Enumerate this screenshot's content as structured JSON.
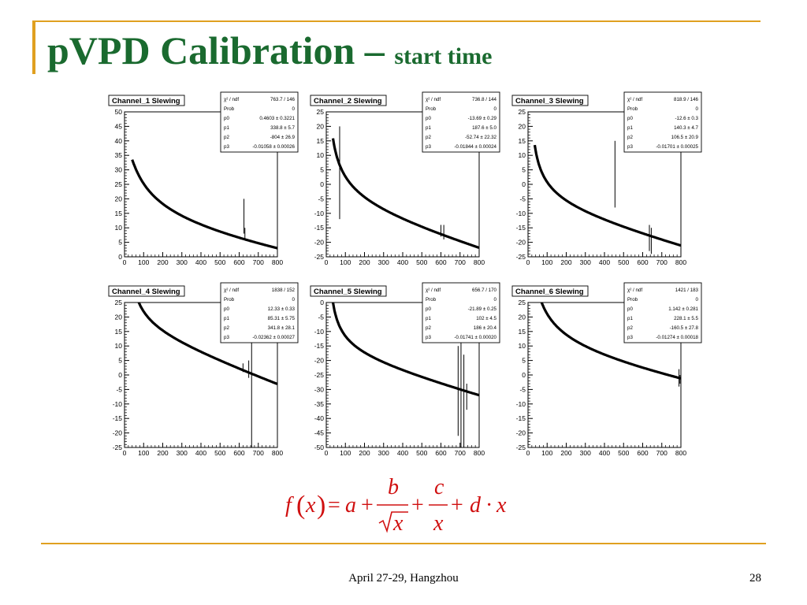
{
  "slide": {
    "title_main": "pVPD Calibration –",
    "title_sub": "start time",
    "footer": "April 27-29, Hangzhou",
    "page_number": "28",
    "formula_color": "#d01010",
    "title_color": "#1a6a2f",
    "accent_color": "#e0a020"
  },
  "formula": {
    "lhs": "f",
    "var": "x",
    "a": "a",
    "b": "b",
    "c": "c",
    "d": "d",
    "plus": "+",
    "equals": "=",
    "dot": "·"
  },
  "chart_data": [
    {
      "type": "line",
      "title": "Channel_1 Slewing",
      "xlim": [
        0,
        800
      ],
      "ylim": [
        0,
        50
      ],
      "xticks": [
        0,
        100,
        200,
        300,
        400,
        500,
        600,
        700,
        800
      ],
      "yticks": [
        0,
        5,
        10,
        15,
        20,
        25,
        30,
        35,
        40,
        45,
        50
      ],
      "stats": [
        [
          "χ² / ndf",
          "763.7 / 146"
        ],
        [
          "Prob",
          "0"
        ],
        [
          "p0",
          "0.4603 ± 0.3221"
        ],
        [
          "p1",
          "338.8 ± 5.7"
        ],
        [
          "p2",
          "-804 ± 26.9"
        ],
        [
          "p3",
          "-0.01058 ± 0.00026"
        ]
      ],
      "params": [
        0.4603,
        338.8,
        -804,
        -0.01058
      ],
      "x_range": [
        40,
        800
      ],
      "error_bars": [
        [
          625,
          8,
          20
        ],
        [
          630,
          6,
          10
        ]
      ],
      "grid": false
    },
    {
      "type": "line",
      "title": "Channel_2 Slewing",
      "xlim": [
        0,
        800
      ],
      "ylim": [
        -25,
        25
      ],
      "xticks": [
        0,
        100,
        200,
        300,
        400,
        500,
        600,
        700,
        800
      ],
      "yticks": [
        -25,
        -20,
        -15,
        -10,
        -5,
        0,
        5,
        10,
        15,
        20,
        25
      ],
      "stats": [
        [
          "χ² / ndf",
          "736.8 / 144"
        ],
        [
          "Prob",
          "0"
        ],
        [
          "p0",
          "-13.69 ± 0.29"
        ],
        [
          "p1",
          "187.6 ± 5.0"
        ],
        [
          "p2",
          "-52.74 ± 22.32"
        ],
        [
          "p3",
          "-0.01844 ± 0.00024"
        ]
      ],
      "params": [
        -13.69,
        187.6,
        -52.74,
        -0.01844
      ],
      "x_range": [
        35,
        800
      ],
      "error_bars": [
        [
          70,
          -12,
          20
        ],
        [
          615,
          -19,
          -14
        ],
        [
          600,
          -18,
          -14
        ]
      ],
      "grid": false
    },
    {
      "type": "line",
      "title": "Channel_3 Slewing",
      "xlim": [
        0,
        800
      ],
      "ylim": [
        -25,
        25
      ],
      "xticks": [
        0,
        100,
        200,
        300,
        400,
        500,
        600,
        700,
        800
      ],
      "yticks": [
        -25,
        -20,
        -15,
        -10,
        -5,
        0,
        5,
        10,
        15,
        20,
        25
      ],
      "stats": [
        [
          "χ² / ndf",
          "818.9 / 146"
        ],
        [
          "Prob",
          "0"
        ],
        [
          "p0",
          "-12.6 ± 0.3"
        ],
        [
          "p1",
          "140.3 ± 4.7"
        ],
        [
          "p2",
          "106.5 ± 20.9"
        ],
        [
          "p3",
          "-0.01701 ± 0.00025"
        ]
      ],
      "params": [
        -12.6,
        140.3,
        106.5,
        -0.01701
      ],
      "x_range": [
        35,
        800
      ],
      "error_bars": [
        [
          455,
          -8,
          15
        ],
        [
          635,
          -23,
          -14
        ],
        [
          645,
          -24,
          -15
        ]
      ],
      "grid": false
    },
    {
      "type": "line",
      "title": "Channel_4 Slewing",
      "xlim": [
        0,
        800
      ],
      "ylim": [
        -25,
        25
      ],
      "xticks": [
        0,
        100,
        200,
        300,
        400,
        500,
        600,
        700,
        800
      ],
      "yticks": [
        -25,
        -20,
        -15,
        -10,
        -5,
        0,
        5,
        10,
        15,
        20,
        25
      ],
      "stats": [
        [
          "χ² / ndf",
          "1838 / 152"
        ],
        [
          "Prob",
          "0"
        ],
        [
          "p0",
          "12.33 ± 0.33"
        ],
        [
          "p1",
          "85.31 ± 5.75"
        ],
        [
          "p2",
          "341.8 ± 28.1"
        ],
        [
          "p3",
          "-0.02362 ± 0.00027"
        ]
      ],
      "params": [
        12.33,
        85.31,
        341.8,
        -0.02362
      ],
      "x_range": [
        35,
        800
      ],
      "error_bars": [
        [
          665,
          -25,
          25
        ],
        [
          650,
          -1,
          5
        ],
        [
          620,
          1,
          4
        ]
      ],
      "grid": false
    },
    {
      "type": "line",
      "title": "Channel_5 Slewing",
      "xlim": [
        0,
        800
      ],
      "ylim": [
        -50,
        0
      ],
      "xticks": [
        0,
        100,
        200,
        300,
        400,
        500,
        600,
        700,
        800
      ],
      "yticks": [
        -50,
        -45,
        -40,
        -35,
        -30,
        -25,
        -20,
        -15,
        -10,
        -5,
        0
      ],
      "stats": [
        [
          "χ² / ndf",
          "656.7 / 170"
        ],
        [
          "Prob",
          "0"
        ],
        [
          "p0",
          "-21.89 ± 0.25"
        ],
        [
          "p1",
          "102 ± 4.5"
        ],
        [
          "p2",
          "186 ± 20.4"
        ],
        [
          "p3",
          "-0.01741 ± 0.00020"
        ]
      ],
      "params": [
        -21.89,
        102,
        186,
        -0.01741
      ],
      "x_range": [
        35,
        800
      ],
      "error_bars": [
        [
          690,
          -46,
          -15
        ],
        [
          705,
          -50,
          -12
        ],
        [
          720,
          -50,
          -18
        ],
        [
          735,
          -37,
          -28
        ]
      ],
      "grid": false
    },
    {
      "type": "line",
      "title": "Channel_6 Slewing",
      "xlim": [
        0,
        800
      ],
      "ylim": [
        -25,
        25
      ],
      "xticks": [
        0,
        100,
        200,
        300,
        400,
        500,
        600,
        700,
        800
      ],
      "yticks": [
        -25,
        -20,
        -15,
        -10,
        -5,
        0,
        5,
        10,
        15,
        20,
        25
      ],
      "stats": [
        [
          "χ² / ndf",
          "1421 / 183"
        ],
        [
          "Prob",
          "0"
        ],
        [
          "p0",
          "1.142 ± 0.281"
        ],
        [
          "p1",
          "228.1 ± 5.5"
        ],
        [
          "p2",
          "-160.5 ± 27.8"
        ],
        [
          "p3",
          "-0.01274 ± 0.00018"
        ]
      ],
      "params": [
        1.142,
        228.1,
        -160.5,
        -0.01274
      ],
      "x_range": [
        35,
        800
      ],
      "error_bars": [
        [
          790,
          -4,
          2
        ],
        [
          795,
          -3,
          0
        ]
      ],
      "grid": false
    }
  ]
}
